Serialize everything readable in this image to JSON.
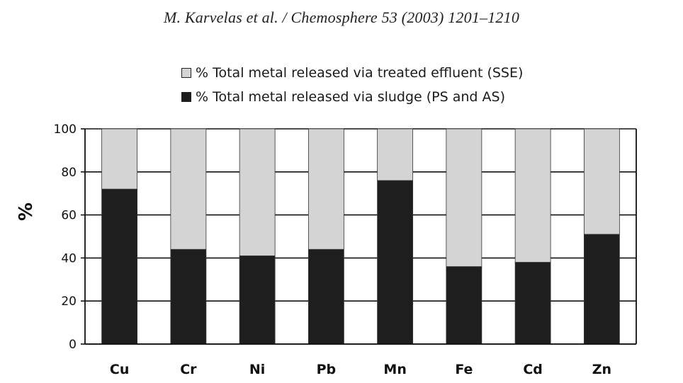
{
  "header": {
    "running_head": "M. Karvelas et al. / Chemosphere 53 (2003) 1201–1210"
  },
  "colors": {
    "effluent": "#d4d4d4",
    "sludge": "#1e1e1e",
    "grid": "#111111"
  },
  "chart_data": {
    "type": "bar",
    "stacked": true,
    "categories": [
      "Cu",
      "Cr",
      "Ni",
      "Pb",
      "Mn",
      "Fe",
      "Cd",
      "Zn"
    ],
    "series": [
      {
        "name": "% Total metal released via sludge (PS and AS)",
        "values": [
          72,
          44,
          41,
          44,
          76,
          36,
          38,
          51
        ]
      },
      {
        "name": "% Total metal released via treated effluent (SSE)",
        "values": [
          28,
          56,
          59,
          56,
          24,
          64,
          62,
          49
        ]
      }
    ],
    "xlabel": "",
    "ylabel": "%",
    "yticks": [
      "0",
      "20",
      "40",
      "60",
      "80",
      "100"
    ],
    "ylim": [
      0,
      100
    ],
    "grid": true,
    "legend_position": "top"
  }
}
